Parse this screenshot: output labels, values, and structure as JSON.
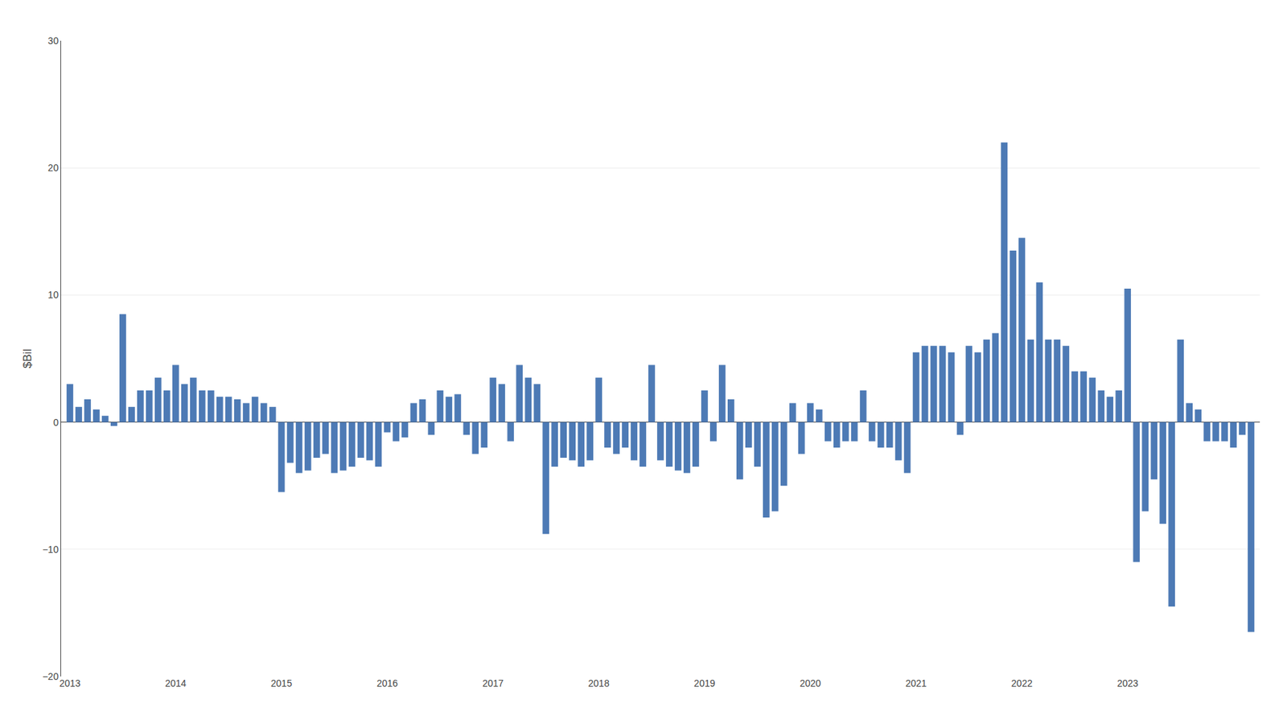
{
  "chart_data": {
    "type": "bar",
    "ylabel": "$Bil",
    "categories": [
      "2013",
      null,
      null,
      null,
      null,
      null,
      null,
      null,
      null,
      null,
      null,
      null,
      "2014",
      null,
      null,
      null,
      null,
      null,
      null,
      null,
      null,
      null,
      null,
      null,
      "2015",
      null,
      null,
      null,
      null,
      null,
      null,
      null,
      null,
      null,
      null,
      null,
      "2016",
      null,
      null,
      null,
      null,
      null,
      null,
      null,
      null,
      null,
      null,
      null,
      "2017",
      null,
      null,
      null,
      null,
      null,
      null,
      null,
      null,
      null,
      null,
      null,
      "2018",
      null,
      null,
      null,
      null,
      null,
      null,
      null,
      null,
      null,
      null,
      null,
      "2019",
      null,
      null,
      null,
      null,
      null,
      null,
      null,
      null,
      null,
      null,
      null,
      "2020",
      null,
      null,
      null,
      null,
      null,
      null,
      null,
      null,
      null,
      null,
      null,
      "2021",
      null,
      null,
      null,
      null,
      null,
      null,
      null,
      null,
      null,
      null,
      null,
      "2022",
      null,
      null,
      null,
      null,
      null,
      null,
      null,
      null,
      null,
      null,
      null,
      "2023",
      null,
      null,
      null,
      null,
      null,
      null,
      null,
      null,
      null,
      null,
      null,
      null,
      null,
      null
    ],
    "values": [
      3.0,
      1.2,
      1.8,
      1.0,
      0.5,
      -0.3,
      8.5,
      1.2,
      2.5,
      2.5,
      3.5,
      2.5,
      4.5,
      3.0,
      3.5,
      2.5,
      2.5,
      2.0,
      2.0,
      1.8,
      1.5,
      2.0,
      1.5,
      1.2,
      -5.5,
      -3.2,
      -4.0,
      -3.8,
      -2.8,
      -2.5,
      -4.0,
      -3.8,
      -3.5,
      -2.8,
      -3.0,
      -3.5,
      -0.8,
      -1.5,
      -1.2,
      1.5,
      1.8,
      -1.0,
      2.5,
      2.0,
      2.2,
      -1.0,
      -2.5,
      -2.0,
      3.5,
      3.0,
      -1.5,
      4.5,
      3.5,
      3.0,
      -8.8,
      -3.5,
      -2.8,
      -3.0,
      -3.5,
      -3.0,
      3.5,
      -2.0,
      -2.5,
      -2.0,
      -3.0,
      -3.5,
      4.5,
      -3.0,
      -3.5,
      -3.8,
      -4.0,
      -3.5,
      2.5,
      -1.5,
      4.5,
      1.8,
      -4.5,
      -2.0,
      -3.5,
      -7.5,
      -7.0,
      -5.0,
      1.5,
      -2.5,
      1.5,
      1.0,
      -1.5,
      -2.0,
      -1.5,
      -1.5,
      2.5,
      -1.5,
      -2.0,
      -2.0,
      -3.0,
      -4.0,
      5.5,
      6.0,
      6.0,
      6.0,
      5.5,
      -1.0,
      6.0,
      5.5,
      6.5,
      7.0,
      22.0,
      13.5,
      14.5,
      6.5,
      11.0,
      6.5,
      6.5,
      6.0,
      4.0,
      4.0,
      3.5,
      2.5,
      2.0,
      2.5,
      10.5,
      -11.0,
      -7.0,
      -4.5,
      -8.0,
      -14.5,
      6.5,
      1.5,
      1.0,
      -1.5,
      -1.5,
      -1.5,
      -2.0,
      -1.0,
      -16.5
    ],
    "color": "#4d7ab5",
    "ylim": [
      -20,
      30
    ],
    "yticks": [
      {
        "value": -20,
        "label": "−20"
      },
      {
        "value": -10,
        "label": "−10"
      },
      0,
      10,
      20,
      30
    ],
    "grid": true
  }
}
